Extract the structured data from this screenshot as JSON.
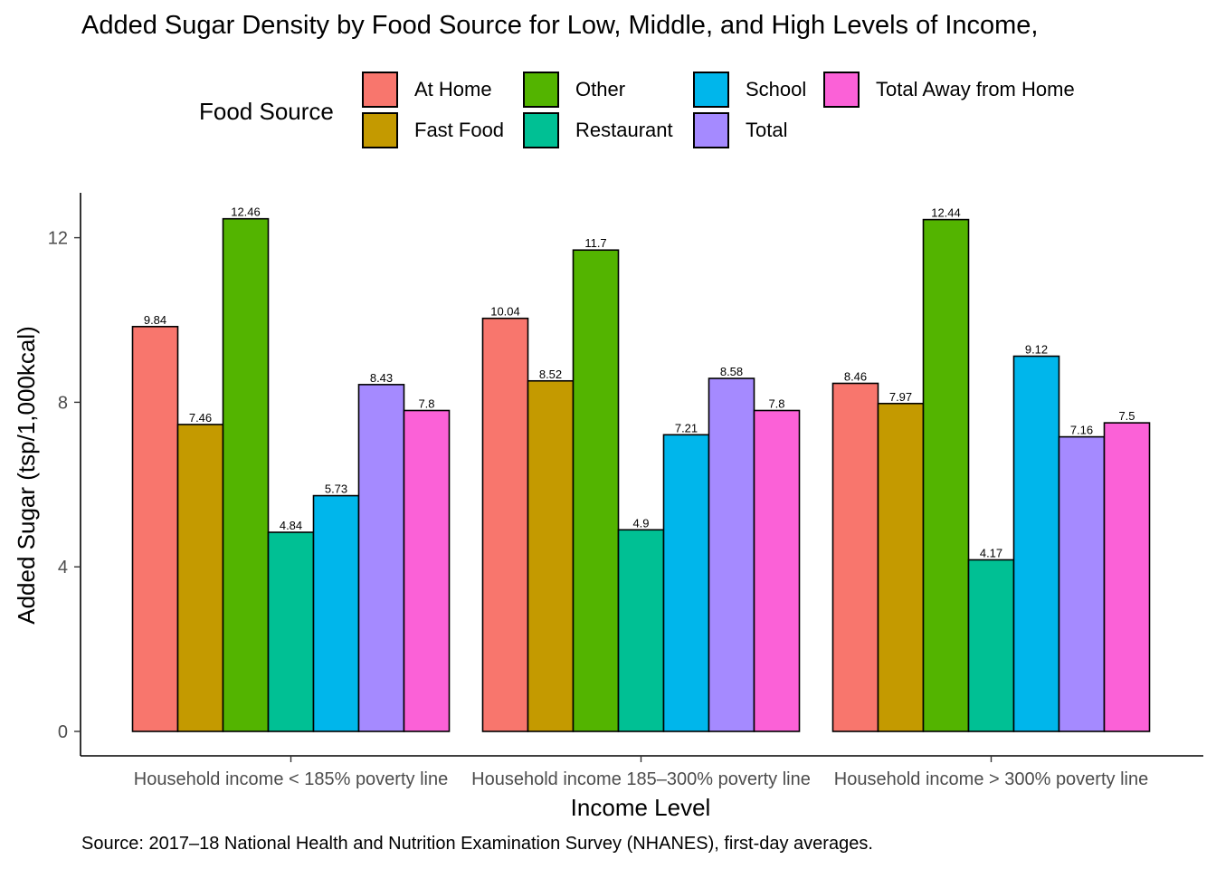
{
  "chart_data": {
    "type": "bar",
    "title": "Added Sugar Density by Food Source for Low, Middle, and High Levels of Income,",
    "xlabel": "Income Level",
    "ylabel": "Added Sugar (tsp/1,000kcal)",
    "caption": "Source: 2017–18 National Health and Nutrition Examination Survey (NHANES), first-day averages.",
    "legend_title": "Food Source",
    "legend_position": "top",
    "grid": false,
    "ylim": [
      0,
      13
    ],
    "yticks": [
      0,
      4,
      8,
      12
    ],
    "categories": [
      "Household income < 185% poverty line",
      "Household income 185–300% poverty line",
      "Household income > 300% poverty line"
    ],
    "series": [
      {
        "name": "At Home",
        "color": "#F8766D",
        "values": [
          9.84,
          10.04,
          8.46
        ],
        "labels": [
          "9.84",
          "10.04",
          "8.46"
        ]
      },
      {
        "name": "Fast Food",
        "color": "#C49A00",
        "values": [
          7.46,
          8.52,
          7.97
        ],
        "labels": [
          "7.46",
          "8.52",
          "7.97"
        ]
      },
      {
        "name": "Other",
        "color": "#53B400",
        "values": [
          12.46,
          11.7,
          12.44
        ],
        "labels": [
          "12.46",
          "11.7",
          "12.44"
        ]
      },
      {
        "name": "Restaurant",
        "color": "#00C094",
        "values": [
          4.84,
          4.9,
          4.17
        ],
        "labels": [
          "4.84",
          "4.9",
          "4.17"
        ]
      },
      {
        "name": "School",
        "color": "#00B6EB",
        "values": [
          5.73,
          7.21,
          9.12
        ],
        "labels": [
          "5.73",
          "7.21",
          "9.12"
        ]
      },
      {
        "name": "Total",
        "color": "#A58AFF",
        "values": [
          8.43,
          8.58,
          7.16
        ],
        "labels": [
          "8.43",
          "8.58",
          "7.16"
        ]
      },
      {
        "name": "Total Away from Home",
        "color": "#FB61D7",
        "values": [
          7.8,
          7.8,
          7.5
        ],
        "labels": [
          "7.8",
          "7.8",
          "7.5"
        ]
      }
    ]
  }
}
